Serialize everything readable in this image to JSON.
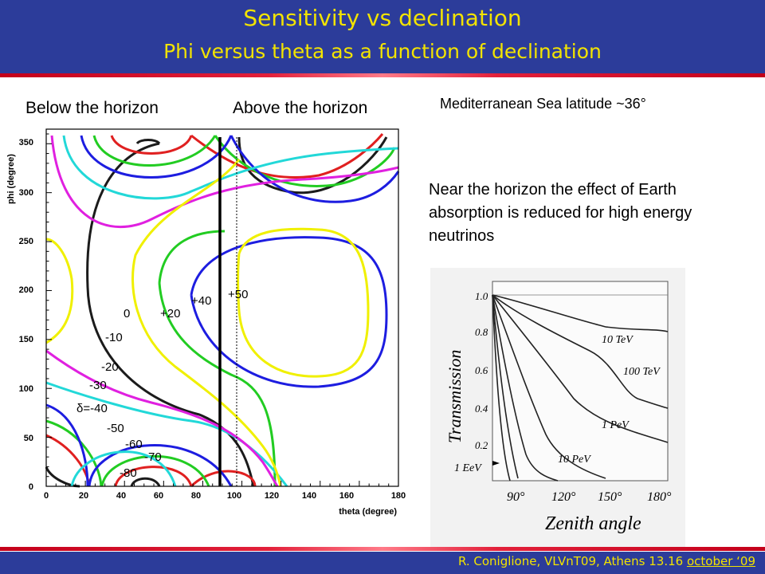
{
  "slide": {
    "title": "Sensitivity vs declination",
    "subtitle": "Phi versus theta as a function of declination",
    "below_label": "Below the horizon",
    "above_label": "Above the horizon",
    "latitude_label": "Mediterranean Sea latitude ~36°",
    "note": "Near the horizon the effect of Earth absorption is reduced for high energy neutrinos",
    "footer_credit": "R. Coniglione, VLVnT09, Athens 13.16",
    "footer_date": "october ‘09"
  },
  "colors": {
    "header_bg": "#2c3c9a",
    "title_yellow": "#f2e300",
    "accent_red": "#e2203a"
  },
  "contour_plot": {
    "x_axis_label": "theta (degree)",
    "y_axis_label": "phi (degree)",
    "x_ticks": [
      "0",
      "20",
      "40",
      "60",
      "80",
      "100",
      "120",
      "140",
      "160",
      "180"
    ],
    "y_ticks": [
      "0",
      "50",
      "100",
      "150",
      "200",
      "250",
      "300",
      "350"
    ],
    "xlim": [
      0,
      180
    ],
    "ylim": [
      0,
      360
    ],
    "horizon_theta": 90,
    "declination_labels": [
      "+50",
      "+40",
      "+20",
      "0",
      "-10",
      "-20",
      "-30",
      "δ=-40",
      "-50",
      "-60",
      "-70",
      "-80"
    ]
  },
  "transmission_plot": {
    "y_axis_label": "Transmission",
    "x_axis_label": "Zenith angle",
    "y_ticks": [
      "1.0",
      "0.8",
      "0.6",
      "0.4",
      "0.2"
    ],
    "x_ticks": [
      "90°",
      "120°",
      "150°",
      "180°"
    ],
    "curve_labels": [
      "10 TeV",
      "100 TeV",
      "1 PeV",
      "10 PeV",
      "1 EeV"
    ]
  }
}
